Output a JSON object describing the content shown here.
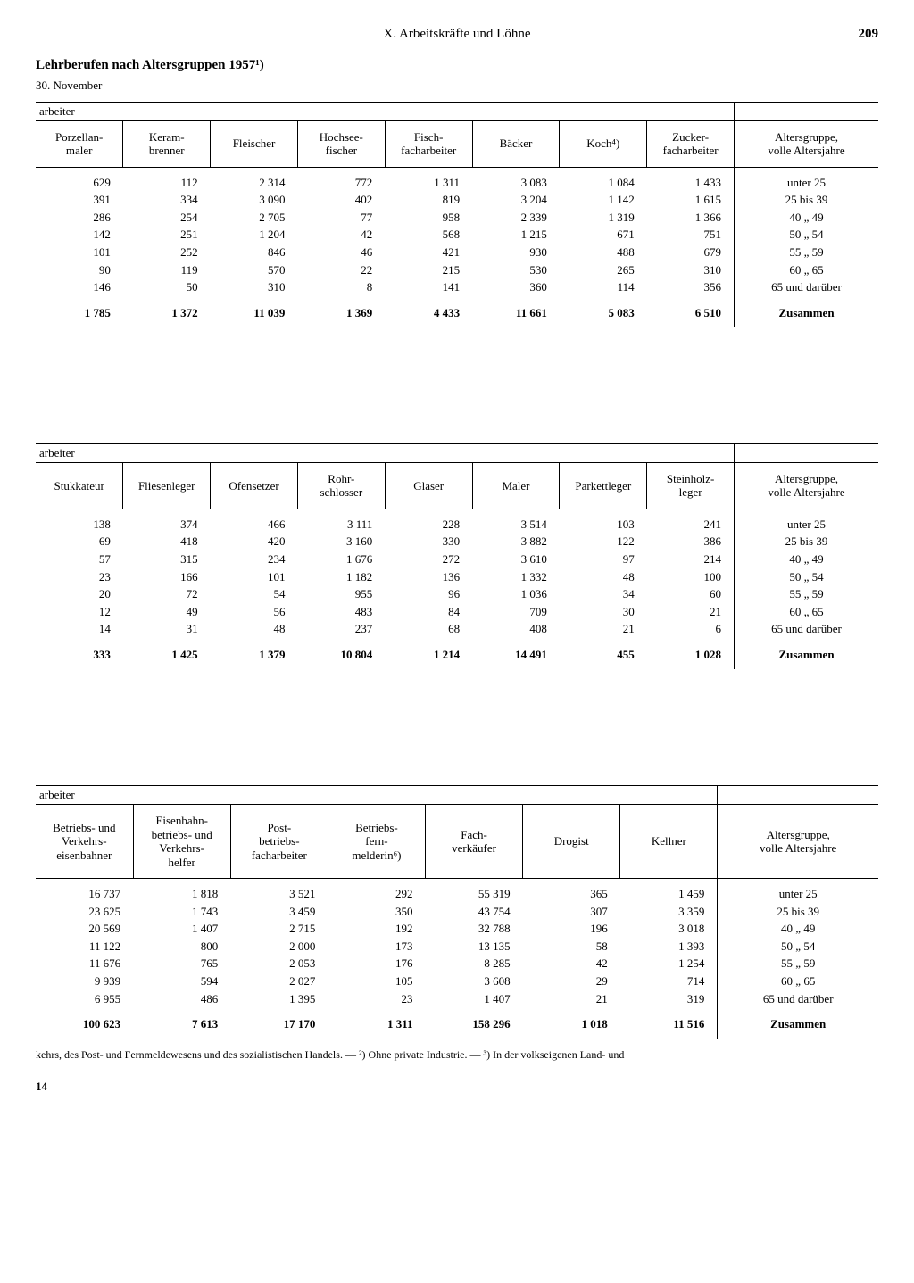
{
  "chapter": "X. Arbeitskräfte und Löhne",
  "pageNumber": "209",
  "sectionTitle": "Lehrberufen nach Altersgruppen 1957¹)",
  "subtitle": "30. November",
  "superHeader": "arbeiter",
  "rowLabelsHeader": "Altersgruppe,\nvolle Altersjahre",
  "ageLabels": [
    "unter 25",
    "25 bis 39",
    "40  „  49",
    "50  „  54",
    "55  „  59",
    "60  „  65",
    "65 und darüber"
  ],
  "totalLabel": "Zusammen",
  "tables": [
    {
      "columns": [
        "Porzellan-\nmaler",
        "Keram-\nbrenner",
        "Fleischer",
        "Hochsee-\nfischer",
        "Fisch-\nfacharbeiter",
        "Bäcker",
        "Koch⁴)",
        "Zucker-\nfacharbeiter"
      ],
      "rows": [
        [
          "629",
          "112",
          "2 314",
          "772",
          "1 311",
          "3 083",
          "1 084",
          "1 433"
        ],
        [
          "391",
          "334",
          "3 090",
          "402",
          "819",
          "3 204",
          "1 142",
          "1 615"
        ],
        [
          "286",
          "254",
          "2 705",
          "77",
          "958",
          "2 339",
          "1 319",
          "1 366"
        ],
        [
          "142",
          "251",
          "1 204",
          "42",
          "568",
          "1 215",
          "671",
          "751"
        ],
        [
          "101",
          "252",
          "846",
          "46",
          "421",
          "930",
          "488",
          "679"
        ],
        [
          "90",
          "119",
          "570",
          "22",
          "215",
          "530",
          "265",
          "310"
        ],
        [
          "146",
          "50",
          "310",
          "8",
          "141",
          "360",
          "114",
          "356"
        ]
      ],
      "total": [
        "1 785",
        "1 372",
        "11 039",
        "1 369",
        "4 433",
        "11 661",
        "5 083",
        "6 510"
      ]
    },
    {
      "columns": [
        "Stukkateur",
        "Fliesenleger",
        "Ofensetzer",
        "Rohr-\nschlosser",
        "Glaser",
        "Maler",
        "Parkettleger",
        "Steinholz-\nleger"
      ],
      "rows": [
        [
          "138",
          "374",
          "466",
          "3 111",
          "228",
          "3 514",
          "103",
          "241"
        ],
        [
          "69",
          "418",
          "420",
          "3 160",
          "330",
          "3 882",
          "122",
          "386"
        ],
        [
          "57",
          "315",
          "234",
          "1 676",
          "272",
          "3 610",
          "97",
          "214"
        ],
        [
          "23",
          "166",
          "101",
          "1 182",
          "136",
          "1 332",
          "48",
          "100"
        ],
        [
          "20",
          "72",
          "54",
          "955",
          "96",
          "1 036",
          "34",
          "60"
        ],
        [
          "12",
          "49",
          "56",
          "483",
          "84",
          "709",
          "30",
          "21"
        ],
        [
          "14",
          "31",
          "48",
          "237",
          "68",
          "408",
          "21",
          "6"
        ]
      ],
      "total": [
        "333",
        "1 425",
        "1 379",
        "10 804",
        "1 214",
        "14 491",
        "455",
        "1 028"
      ]
    },
    {
      "columns": [
        "Betriebs- und\nVerkehrs-\neisenbahner",
        "Eisenbahn-\nbetriebs- und\nVerkehrs-\nhelfer",
        "Post-\nbetriebs-\nfacharbeiter",
        "Betriebs-\nfern-\nmelderin⁶)",
        "Fach-\nverkäufer",
        "Drogist",
        "Kellner"
      ],
      "rows": [
        [
          "16 737",
          "1 818",
          "3 521",
          "292",
          "55 319",
          "365",
          "1 459"
        ],
        [
          "23 625",
          "1 743",
          "3 459",
          "350",
          "43 754",
          "307",
          "3 359"
        ],
        [
          "20 569",
          "1 407",
          "2 715",
          "192",
          "32 788",
          "196",
          "3 018"
        ],
        [
          "11 122",
          "800",
          "2 000",
          "173",
          "13 135",
          "58",
          "1 393"
        ],
        [
          "11 676",
          "765",
          "2 053",
          "176",
          "8 285",
          "42",
          "1 254"
        ],
        [
          "9 939",
          "594",
          "2 027",
          "105",
          "3 608",
          "29",
          "714"
        ],
        [
          "6 955",
          "486",
          "1 395",
          "23",
          "1 407",
          "21",
          "319"
        ]
      ],
      "total": [
        "100 623",
        "7 613",
        "17 170",
        "1 311",
        "158 296",
        "1 018",
        "11 516"
      ]
    }
  ],
  "footnote": "kehrs, des Post- und Fernmeldewesens und des sozialistischen Handels. — ²) Ohne private Industrie. — ³) In der volkseigenen Land- und",
  "footerNumber": "14"
}
